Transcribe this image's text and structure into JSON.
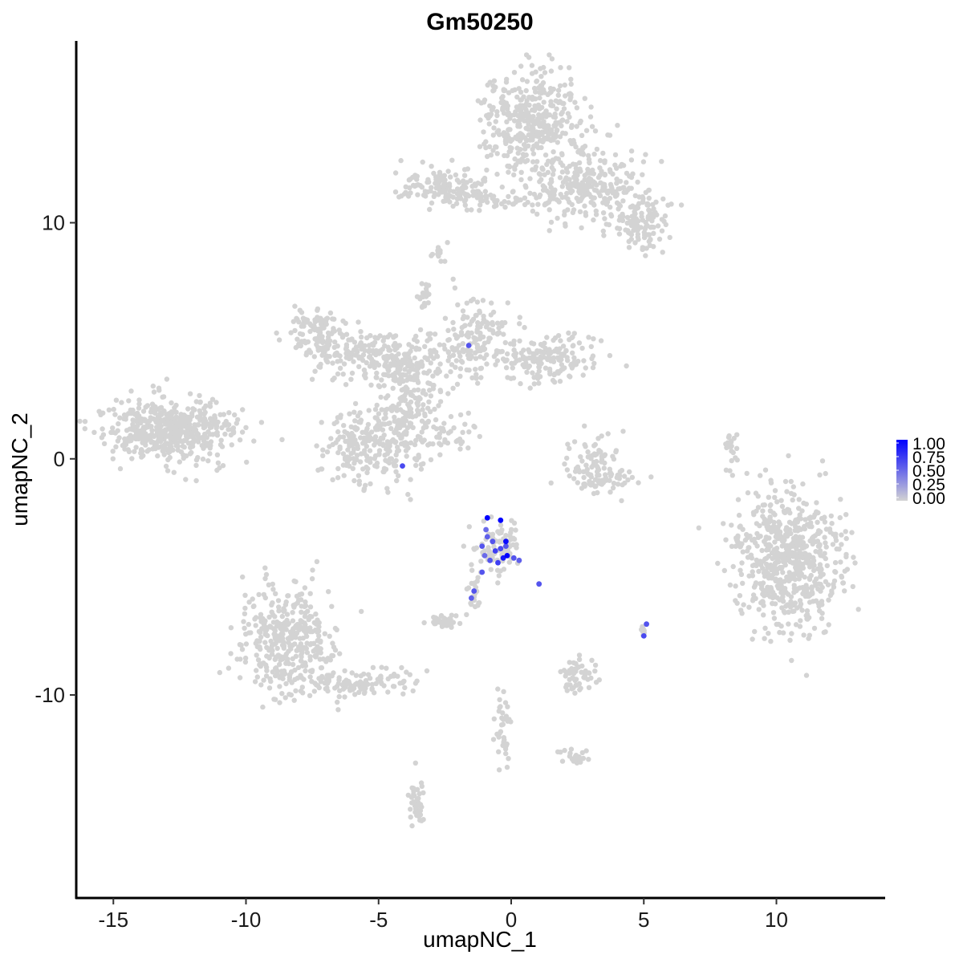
{
  "chart_data": {
    "type": "scatter",
    "title": "Gm50250",
    "xlabel": "umapNC_1",
    "ylabel": "umapNC_2",
    "xlim": [
      -16.4,
      14.1
    ],
    "ylim": [
      -18.6,
      17.7
    ],
    "x_ticks": [
      -15,
      -10,
      -5,
      0,
      5,
      10
    ],
    "x_tick_labels": [
      "-15",
      "-10",
      "-5",
      "0",
      "5",
      "10"
    ],
    "y_ticks": [
      -10,
      0,
      10
    ],
    "y_tick_labels": [
      "-10",
      "0",
      "10"
    ],
    "grid": false,
    "legend": {
      "placement": "right",
      "type": "colorbar",
      "labels": [
        "1.00",
        "0.75",
        "0.50",
        "0.25",
        "0.00"
      ],
      "range": [
        0,
        1
      ],
      "low_color": "#d3d3d3",
      "high_color": "#0000ff"
    },
    "background_color": "#d3d3d3",
    "clusters": [
      {
        "cx": -13.0,
        "cy": 1.2,
        "sx": 1.3,
        "sy": 0.7,
        "n": 520
      },
      {
        "cx": 0.8,
        "cy": 14.2,
        "sx": 0.9,
        "sy": 1.1,
        "n": 420
      },
      {
        "cx": 3.0,
        "cy": 11.5,
        "sx": 1.1,
        "sy": 0.8,
        "n": 260
      },
      {
        "cx": 5.0,
        "cy": 10.0,
        "sx": 0.5,
        "sy": 0.6,
        "n": 110
      },
      {
        "cx": -2.6,
        "cy": 11.6,
        "sx": 0.7,
        "sy": 0.4,
        "n": 120
      },
      {
        "cx": -0.5,
        "cy": 11.0,
        "sx": 1.3,
        "sy": 0.2,
        "n": 70
      },
      {
        "cx": -7.3,
        "cy": 5.3,
        "sx": 0.6,
        "sy": 0.5,
        "n": 110
      },
      {
        "cx": -5.6,
        "cy": 4.4,
        "sx": 1.0,
        "sy": 0.5,
        "n": 150
      },
      {
        "cx": -3.6,
        "cy": 3.9,
        "sx": 0.9,
        "sy": 0.6,
        "n": 170
      },
      {
        "cx": -1.4,
        "cy": 5.2,
        "sx": 0.7,
        "sy": 0.8,
        "n": 130
      },
      {
        "cx": 1.2,
        "cy": 4.3,
        "sx": 1.0,
        "sy": 0.5,
        "n": 180
      },
      {
        "cx": -3.9,
        "cy": 1.5,
        "sx": 0.5,
        "sy": 1.0,
        "n": 160
      },
      {
        "cx": -5.6,
        "cy": 0.6,
        "sx": 0.8,
        "sy": 0.8,
        "n": 190
      },
      {
        "cx": -3.3,
        "cy": 6.8,
        "sx": 0.12,
        "sy": 0.3,
        "n": 20
      },
      {
        "cx": -2.1,
        "cy": 1.1,
        "sx": 0.5,
        "sy": 0.4,
        "n": 35
      },
      {
        "cx": 10.5,
        "cy": -4.3,
        "sx": 1.0,
        "sy": 1.4,
        "n": 650
      },
      {
        "cx": 3.2,
        "cy": -0.3,
        "sx": 0.5,
        "sy": 0.6,
        "n": 80
      },
      {
        "cx": 3.6,
        "cy": -0.9,
        "sx": 0.7,
        "sy": 0.2,
        "n": 45
      },
      {
        "cx": -8.5,
        "cy": -7.7,
        "sx": 0.9,
        "sy": 1.2,
        "n": 380
      },
      {
        "cx": -6.0,
        "cy": -9.5,
        "sx": 1.2,
        "sy": 0.3,
        "n": 110
      },
      {
        "cx": -0.5,
        "cy": -3.7,
        "sx": 0.45,
        "sy": 0.5,
        "n": 90
      },
      {
        "cx": -1.4,
        "cy": -5.8,
        "sx": 0.12,
        "sy": 0.5,
        "n": 22
      },
      {
        "cx": -2.4,
        "cy": -6.9,
        "sx": 0.3,
        "sy": 0.15,
        "n": 40
      },
      {
        "cx": 2.5,
        "cy": -9.2,
        "sx": 0.35,
        "sy": 0.4,
        "n": 55
      },
      {
        "cx": -0.3,
        "cy": -11.3,
        "sx": 0.15,
        "sy": 0.8,
        "n": 38
      },
      {
        "cx": 2.4,
        "cy": -12.6,
        "sx": 0.3,
        "sy": 0.15,
        "n": 22
      },
      {
        "cx": -3.6,
        "cy": -14.6,
        "sx": 0.15,
        "sy": 0.55,
        "n": 40
      },
      {
        "cx": 8.3,
        "cy": 0.3,
        "sx": 0.12,
        "sy": 0.5,
        "n": 20
      },
      {
        "cx": -2.7,
        "cy": 8.8,
        "sx": 0.15,
        "sy": 0.2,
        "n": 12
      },
      {
        "cx": 5.0,
        "cy": -7.3,
        "sx": 0.1,
        "sy": 0.1,
        "n": 8
      }
    ],
    "highlighted_points": [
      {
        "x": -0.9,
        "y": -2.5,
        "v": 1.0
      },
      {
        "x": -0.4,
        "y": -2.6,
        "v": 1.0
      },
      {
        "x": -0.2,
        "y": -3.5,
        "v": 0.95
      },
      {
        "x": -0.15,
        "y": -4.1,
        "v": 1.0
      },
      {
        "x": -0.3,
        "y": -4.2,
        "v": 0.9
      },
      {
        "x": -1.1,
        "y": -3.7,
        "v": 0.6
      },
      {
        "x": -0.9,
        "y": -3.3,
        "v": 0.55
      },
      {
        "x": -0.6,
        "y": -3.9,
        "v": 0.7
      },
      {
        "x": -0.8,
        "y": -4.3,
        "v": 0.6
      },
      {
        "x": -0.5,
        "y": -4.4,
        "v": 0.7
      },
      {
        "x": -1.0,
        "y": -4.1,
        "v": 0.5
      },
      {
        "x": -0.7,
        "y": -3.5,
        "v": 0.6
      },
      {
        "x": -0.4,
        "y": -3.8,
        "v": 0.65
      },
      {
        "x": 0.1,
        "y": -4.2,
        "v": 0.6
      },
      {
        "x": 0.3,
        "y": -4.3,
        "v": 0.55
      },
      {
        "x": -1.1,
        "y": -4.8,
        "v": 0.6
      },
      {
        "x": -1.4,
        "y": -5.6,
        "v": 0.6
      },
      {
        "x": -1.5,
        "y": -5.9,
        "v": 0.55
      },
      {
        "x": 1.05,
        "y": -5.3,
        "v": 0.6
      },
      {
        "x": -1.6,
        "y": 4.8,
        "v": 0.6
      },
      {
        "x": -4.1,
        "y": -0.3,
        "v": 0.65
      },
      {
        "x": 5.1,
        "y": -7.0,
        "v": 0.6
      },
      {
        "x": 5.0,
        "y": -7.5,
        "v": 0.65
      },
      {
        "x": -0.95,
        "y": -3.0,
        "v": 0.5
      },
      {
        "x": -0.2,
        "y": -3.7,
        "v": 0.6
      }
    ]
  }
}
